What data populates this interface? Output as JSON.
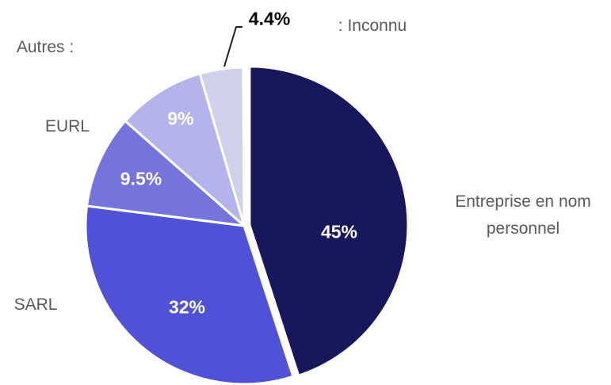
{
  "chart_data": {
    "type": "pie",
    "categories": [
      "Entreprise en nom personnel",
      "SARL",
      "EURL",
      "Autres :",
      ": Inconnu"
    ],
    "values": [
      45,
      32,
      9.5,
      9,
      4.4
    ],
    "value_labels": [
      "45%",
      "32%",
      "9.5%",
      "9%",
      "4.4%"
    ],
    "colors": [
      "#16175c",
      "#4f52d6",
      "#7474dc",
      "#b4b4ec",
      "#cfd0ea"
    ]
  }
}
